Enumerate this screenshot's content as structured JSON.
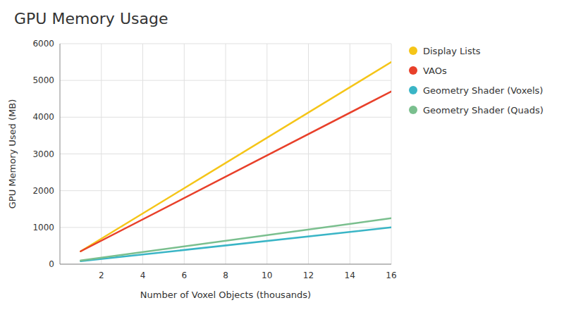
{
  "chart_data": {
    "type": "line",
    "title": "GPU Memory Usage",
    "xlabel": "Number of Voxel Objects (thousands)",
    "ylabel": "GPU Memory Used (MB)",
    "x": [
      1,
      16
    ],
    "series": [
      {
        "name": "Display Lists",
        "color": "#f5c518",
        "values": [
          350,
          5500
        ]
      },
      {
        "name": "VAOs",
        "color": "#e8402a",
        "values": [
          350,
          4700
        ]
      },
      {
        "name": "Geometry Shader (Voxels)",
        "color": "#3ab5c6",
        "values": [
          80,
          1000
        ]
      },
      {
        "name": "Geometry Shader (Quads)",
        "color": "#7abf8e",
        "values": [
          100,
          1250
        ]
      }
    ],
    "xlim": [
      0,
      16
    ],
    "ylim": [
      0,
      6000
    ],
    "xticks": [
      2,
      4,
      6,
      8,
      10,
      12,
      14,
      16
    ],
    "yticks": [
      0,
      1000,
      2000,
      3000,
      4000,
      5000,
      6000
    ],
    "grid": true,
    "legend": "right"
  }
}
